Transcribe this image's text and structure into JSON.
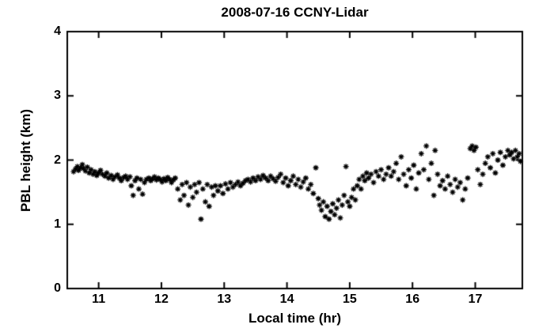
{
  "chart_data": {
    "type": "scatter",
    "title": "2008-07-16 CCNY-Lidar",
    "xlabel": "Local time (hr)",
    "ylabel": "PBL height (km)",
    "xlim": [
      10.5,
      17.75
    ],
    "ylim": [
      0,
      4
    ],
    "xticks": [
      11,
      12,
      13,
      14,
      15,
      16,
      17
    ],
    "yticks": [
      0,
      1,
      2,
      3,
      4
    ],
    "grid": false,
    "legend": "none",
    "marker": "asterisk",
    "marker_color": "#000000",
    "background_color": "#ffffff",
    "axis_color": "#000000",
    "points": [
      [
        10.6,
        1.82
      ],
      [
        10.63,
        1.86
      ],
      [
        10.66,
        1.9
      ],
      [
        10.68,
        1.84
      ],
      [
        10.71,
        1.88
      ],
      [
        10.74,
        1.93
      ],
      [
        10.76,
        1.87
      ],
      [
        10.79,
        1.83
      ],
      [
        10.82,
        1.89
      ],
      [
        10.85,
        1.8
      ],
      [
        10.88,
        1.85
      ],
      [
        10.91,
        1.78
      ],
      [
        10.94,
        1.82
      ],
      [
        10.97,
        1.76
      ],
      [
        11.0,
        1.8
      ],
      [
        11.03,
        1.84
      ],
      [
        11.06,
        1.78
      ],
      [
        11.1,
        1.75
      ],
      [
        11.13,
        1.8
      ],
      [
        11.16,
        1.72
      ],
      [
        11.2,
        1.76
      ],
      [
        11.23,
        1.7
      ],
      [
        11.26,
        1.74
      ],
      [
        11.3,
        1.77
      ],
      [
        11.33,
        1.72
      ],
      [
        11.36,
        1.68
      ],
      [
        11.4,
        1.73
      ],
      [
        11.43,
        1.75
      ],
      [
        11.46,
        1.7
      ],
      [
        11.5,
        1.74
      ],
      [
        11.52,
        1.6
      ],
      [
        11.55,
        1.45
      ],
      [
        11.58,
        1.68
      ],
      [
        11.61,
        1.72
      ],
      [
        11.64,
        1.55
      ],
      [
        11.67,
        1.7
      ],
      [
        11.7,
        1.47
      ],
      [
        11.73,
        1.65
      ],
      [
        11.76,
        1.7
      ],
      [
        11.8,
        1.72
      ],
      [
        11.83,
        1.68
      ],
      [
        11.86,
        1.71
      ],
      [
        11.89,
        1.74
      ],
      [
        11.92,
        1.69
      ],
      [
        11.95,
        1.72
      ],
      [
        11.98,
        1.7
      ],
      [
        12.01,
        1.66
      ],
      [
        12.04,
        1.71
      ],
      [
        12.07,
        1.68
      ],
      [
        12.1,
        1.73
      ],
      [
        12.13,
        1.7
      ],
      [
        12.16,
        1.65
      ],
      [
        12.19,
        1.69
      ],
      [
        12.22,
        1.72
      ],
      [
        12.26,
        1.55
      ],
      [
        12.3,
        1.38
      ],
      [
        12.33,
        1.62
      ],
      [
        12.36,
        1.45
      ],
      [
        12.4,
        1.65
      ],
      [
        12.43,
        1.3
      ],
      [
        12.46,
        1.58
      ],
      [
        12.5,
        1.42
      ],
      [
        12.53,
        1.62
      ],
      [
        12.56,
        1.5
      ],
      [
        12.6,
        1.65
      ],
      [
        12.63,
        1.08
      ],
      [
        12.66,
        1.55
      ],
      [
        12.7,
        1.35
      ],
      [
        12.73,
        1.62
      ],
      [
        12.76,
        1.28
      ],
      [
        12.8,
        1.58
      ],
      [
        12.83,
        1.45
      ],
      [
        12.86,
        1.6
      ],
      [
        12.9,
        1.52
      ],
      [
        12.94,
        1.6
      ],
      [
        12.98,
        1.48
      ],
      [
        13.02,
        1.63
      ],
      [
        13.06,
        1.55
      ],
      [
        13.1,
        1.65
      ],
      [
        13.14,
        1.58
      ],
      [
        13.18,
        1.62
      ],
      [
        13.22,
        1.66
      ],
      [
        13.26,
        1.6
      ],
      [
        13.3,
        1.64
      ],
      [
        13.34,
        1.68
      ],
      [
        13.38,
        1.7
      ],
      [
        13.42,
        1.66
      ],
      [
        13.46,
        1.72
      ],
      [
        13.5,
        1.68
      ],
      [
        13.54,
        1.74
      ],
      [
        13.58,
        1.7
      ],
      [
        13.62,
        1.76
      ],
      [
        13.66,
        1.72
      ],
      [
        13.7,
        1.68
      ],
      [
        13.74,
        1.75
      ],
      [
        13.78,
        1.71
      ],
      [
        13.82,
        1.67
      ],
      [
        13.86,
        1.73
      ],
      [
        13.9,
        1.78
      ],
      [
        13.94,
        1.65
      ],
      [
        13.98,
        1.72
      ],
      [
        14.02,
        1.6
      ],
      [
        14.06,
        1.68
      ],
      [
        14.1,
        1.75
      ],
      [
        14.14,
        1.62
      ],
      [
        14.18,
        1.7
      ],
      [
        14.22,
        1.58
      ],
      [
        14.26,
        1.66
      ],
      [
        14.3,
        1.72
      ],
      [
        14.34,
        1.55
      ],
      [
        14.38,
        1.62
      ],
      [
        14.42,
        1.48
      ],
      [
        14.46,
        1.88
      ],
      [
        14.5,
        1.4
      ],
      [
        14.52,
        1.3
      ],
      [
        14.55,
        1.22
      ],
      [
        14.58,
        1.35
      ],
      [
        14.61,
        1.12
      ],
      [
        14.64,
        1.28
      ],
      [
        14.67,
        1.08
      ],
      [
        14.7,
        1.2
      ],
      [
        14.73,
        1.32
      ],
      [
        14.76,
        1.15
      ],
      [
        14.79,
        1.25
      ],
      [
        14.82,
        1.38
      ],
      [
        14.85,
        1.1
      ],
      [
        14.88,
        1.3
      ],
      [
        14.91,
        1.45
      ],
      [
        14.94,
        1.9
      ],
      [
        14.97,
        1.35
      ],
      [
        15.0,
        1.28
      ],
      [
        15.03,
        1.42
      ],
      [
        15.06,
        1.55
      ],
      [
        15.09,
        1.38
      ],
      [
        15.12,
        1.6
      ],
      [
        15.15,
        1.7
      ],
      [
        15.18,
        1.55
      ],
      [
        15.21,
        1.75
      ],
      [
        15.24,
        1.68
      ],
      [
        15.27,
        1.8
      ],
      [
        15.3,
        1.72
      ],
      [
        15.34,
        1.78
      ],
      [
        15.38,
        1.65
      ],
      [
        15.42,
        1.82
      ],
      [
        15.46,
        1.75
      ],
      [
        15.5,
        1.85
      ],
      [
        15.54,
        1.7
      ],
      [
        15.58,
        1.78
      ],
      [
        15.62,
        1.88
      ],
      [
        15.66,
        1.75
      ],
      [
        15.7,
        1.82
      ],
      [
        15.74,
        1.95
      ],
      [
        15.78,
        1.7
      ],
      [
        15.82,
        2.05
      ],
      [
        15.86,
        1.78
      ],
      [
        15.9,
        1.6
      ],
      [
        15.94,
        1.85
      ],
      [
        15.98,
        1.72
      ],
      [
        16.02,
        1.92
      ],
      [
        16.06,
        1.55
      ],
      [
        16.1,
        1.8
      ],
      [
        16.14,
        2.1
      ],
      [
        16.18,
        1.85
      ],
      [
        16.22,
        2.22
      ],
      [
        16.26,
        1.7
      ],
      [
        16.3,
        1.95
      ],
      [
        16.34,
        1.45
      ],
      [
        16.36,
        2.15
      ],
      [
        16.4,
        1.78
      ],
      [
        16.44,
        1.6
      ],
      [
        16.48,
        1.68
      ],
      [
        16.52,
        1.55
      ],
      [
        16.56,
        1.75
      ],
      [
        16.6,
        1.62
      ],
      [
        16.64,
        1.5
      ],
      [
        16.68,
        1.7
      ],
      [
        16.72,
        1.58
      ],
      [
        16.76,
        1.65
      ],
      [
        16.8,
        1.38
      ],
      [
        16.84,
        1.55
      ],
      [
        16.88,
        1.72
      ],
      [
        16.92,
        2.18
      ],
      [
        16.95,
        2.22
      ],
      [
        16.98,
        2.15
      ],
      [
        17.01,
        2.2
      ],
      [
        17.04,
        1.85
      ],
      [
        17.08,
        1.62
      ],
      [
        17.12,
        1.78
      ],
      [
        17.16,
        1.95
      ],
      [
        17.2,
        2.05
      ],
      [
        17.24,
        1.88
      ],
      [
        17.28,
        2.1
      ],
      [
        17.32,
        1.8
      ],
      [
        17.36,
        2.0
      ],
      [
        17.4,
        2.12
      ],
      [
        17.44,
        1.92
      ],
      [
        17.48,
        2.05
      ],
      [
        17.52,
        2.15
      ],
      [
        17.55,
        2.08
      ],
      [
        17.58,
        2.12
      ],
      [
        17.61,
        2.02
      ],
      [
        17.64,
        2.15
      ],
      [
        17.67,
        2.05
      ],
      [
        17.7,
        2.1
      ],
      [
        17.72,
        1.98
      ]
    ]
  }
}
